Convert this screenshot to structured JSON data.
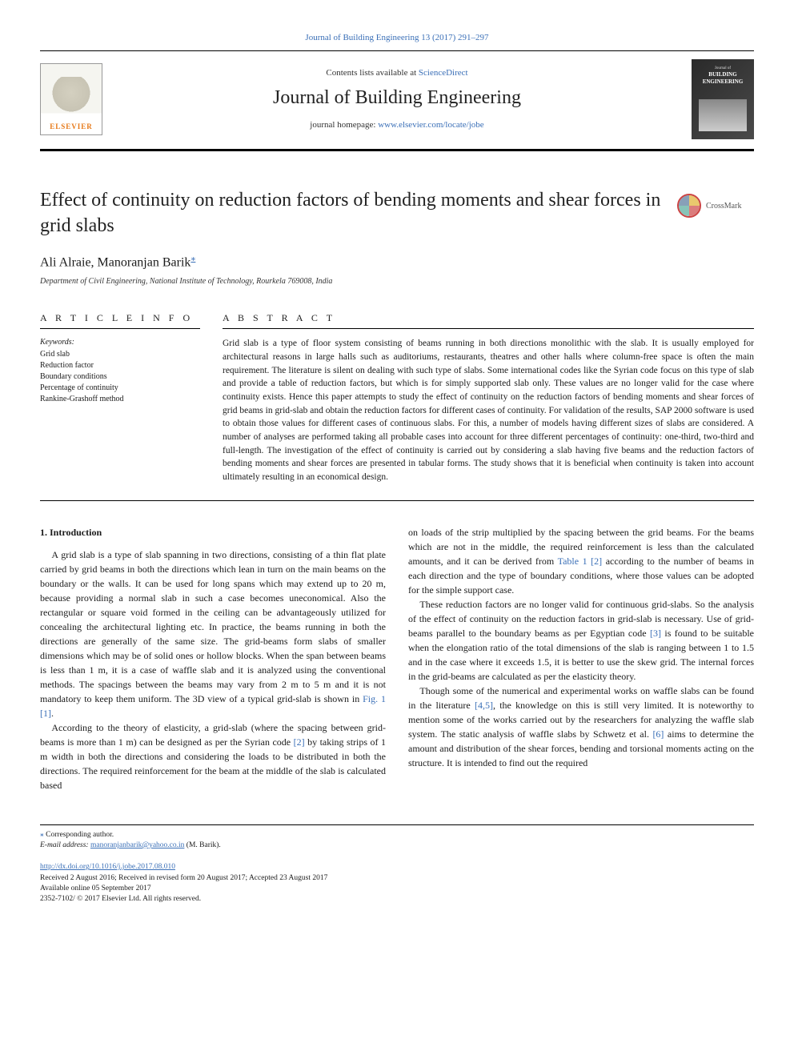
{
  "colors": {
    "link": "#3a6fb7",
    "text": "#1a1a1a",
    "elsevier_orange": "#e67817",
    "rule": "#000000",
    "background": "#ffffff"
  },
  "typography": {
    "body_family": "Times New Roman, serif",
    "journal_title_size_pt": 18,
    "article_title_size_pt": 18,
    "authors_size_pt": 12,
    "body_size_pt": 9,
    "abstract_size_pt": 8.5,
    "keywords_size_pt": 7.5,
    "footer_size_pt": 7
  },
  "header": {
    "top_link": "Journal of Building Engineering 13 (2017) 291–297",
    "contents_line_prefix": "Contents lists available at ",
    "contents_line_link": "ScienceDirect",
    "journal_title": "Journal of Building Engineering",
    "homepage_prefix": "journal homepage: ",
    "homepage_link": "www.elsevier.com/locate/jobe",
    "elsevier_text": "ELSEVIER",
    "cover_small_1": "Journal of",
    "cover_small_2": "BUILDING",
    "cover_small_3": "ENGINEERING"
  },
  "article": {
    "title": "Effect of continuity on reduction factors of bending moments and shear forces in grid slabs",
    "crossmark": "CrossMark",
    "authors": "Ali Alraie, Manoranjan Barik",
    "corr_symbol": "⁎",
    "affiliation": "Department of Civil Engineering, National Institute of Technology, Rourkela 769008, India"
  },
  "info": {
    "heading": "A R T I C L E  I N F O",
    "keywords_label": "Keywords:",
    "keywords": [
      "Grid slab",
      "Reduction factor",
      "Boundary conditions",
      "Percentage of continuity",
      "Rankine-Grashoff method"
    ]
  },
  "abstract": {
    "heading": "A B S T R A C T",
    "text": "Grid slab is a type of floor system consisting of beams running in both directions monolithic with the slab. It is usually employed for architectural reasons in large halls such as auditoriums, restaurants, theatres and other halls where column-free space is often the main requirement. The literature is silent on dealing with such type of slabs. Some international codes like the Syrian code focus on this type of slab and provide a table of reduction factors, but which is for simply supported slab only. These values are no longer valid for the case where continuity exists. Hence this paper attempts to study the effect of continuity on the reduction factors of bending moments and shear forces of grid beams in grid-slab and obtain the reduction factors for different cases of continuity. For validation of the results, SAP 2000 software is used to obtain those values for different cases of continuous slabs. For this, a number of models having different sizes of slabs are considered. A number of analyses are performed taking all probable cases into account for three different percentages of continuity: one-third, two-third and full-length. The investigation of the effect of continuity is carried out by considering a slab having five beams and the reduction factors of bending moments and shear forces are presented in tabular forms. The study shows that it is beneficial when continuity is taken into account ultimately resulting in an economical design."
  },
  "body": {
    "section_heading": "1. Introduction",
    "p1": "A grid slab is a type of slab spanning in two directions, consisting of a thin flat plate carried by grid beams in both the directions which lean in turn on the main beams on the boundary or the walls. It can be used for long spans which may extend up to 20 m, because providing a normal slab in such a case becomes uneconomical. Also the rectangular or square void formed in the ceiling can be advantageously utilized for concealing the architectural lighting etc. In practice, the beams running in both the directions are generally of the same size. The grid-beams form slabs of smaller dimensions which may be of solid ones or hollow blocks. When the span between beams is less than 1 m, it is a case of waffle slab and it is analyzed using the conventional methods. The spacings between the beams may vary from 2 m to 5 m and it is not mandatory to keep them uniform. The 3D view of a typical grid-slab is shown in ",
    "p1_cite1": "Fig. 1",
    "p1_cite2": " [1]",
    "p1_end": ".",
    "p2a": "According to the theory of elasticity, a grid-slab (where the spacing between grid-beams is more than 1 m) can be designed as per the Syrian code ",
    "p2_cite1": "[2]",
    "p2b": " by taking strips of 1 m width in both the directions and considering the loads to be distributed in both the directions. The required reinforcement for the beam at the middle of the slab is calculated based",
    "p3a": "on loads of the strip multiplied by the spacing between the grid beams. For the beams which are not in the middle, the required reinforcement is less than the calculated amounts, and it can be derived from ",
    "p3_cite1": "Table 1",
    "p3_cite2": " [2]",
    "p3b": " according to the number of beams in each direction and the type of boundary conditions, where those values can be adopted for the simple support case.",
    "p4a": "These reduction factors are no longer valid for continuous grid-slabs. So the analysis of the effect of continuity on the reduction factors in grid-slab is necessary. Use of grid-beams parallel to the boundary beams as per Egyptian code ",
    "p4_cite1": "[3]",
    "p4b": " is found to be suitable when the elongation ratio of the total dimensions of the slab is ranging between 1 to 1.5 and in the case where it exceeds 1.5, it is better to use the skew grid. The internal forces in the grid-beams are calculated as per the elasticity theory.",
    "p5a": "Though some of the numerical and experimental works on waffle slabs can be found in the literature ",
    "p5_cite1": "[4,5]",
    "p5b": ", the knowledge on this is still very limited. It is noteworthy to mention some of the works carried out by the researchers for analyzing the waffle slab system. The static analysis of waffle slabs by Schwetz et al. ",
    "p5_cite2": "[6]",
    "p5c": " aims to determine the amount and distribution of the shear forces, bending and torsional moments acting on the structure. It is intended to find out the required"
  },
  "footer": {
    "corr": "Corresponding author.",
    "email_label": "E-mail address:",
    "email": "manoranjanbarik@yahoo.co.in",
    "email_tail": " (M. Barik).",
    "doi": "http://dx.doi.org/10.1016/j.jobe.2017.08.010",
    "received": "Received 2 August 2016; Received in revised form 20 August 2017; Accepted 23 August 2017",
    "available": "Available online 05 September 2017",
    "copyright": "2352-7102/ © 2017 Elsevier Ltd. All rights reserved."
  }
}
